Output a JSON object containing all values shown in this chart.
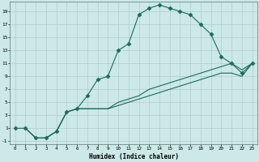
{
  "xlabel": "Humidex (Indice chaleur)",
  "ylabel": "",
  "bg_color": "#cce8e8",
  "grid_color": "#b8d8d8",
  "line_color": "#1a6b5a",
  "xlim": [
    -0.5,
    23.5
  ],
  "ylim": [
    -1.5,
    20.5
  ],
  "xticks": [
    0,
    1,
    2,
    3,
    4,
    5,
    6,
    7,
    8,
    9,
    10,
    11,
    12,
    13,
    14,
    15,
    16,
    17,
    18,
    19,
    20,
    21,
    22,
    23
  ],
  "yticks": [
    -1,
    1,
    3,
    5,
    7,
    9,
    11,
    13,
    15,
    17,
    19
  ],
  "curve1_x": [
    0,
    1,
    2,
    3,
    4,
    5,
    6,
    7,
    8,
    9,
    10,
    11,
    12,
    13,
    14,
    15,
    16,
    17,
    18,
    19,
    20,
    21,
    22,
    23
  ],
  "curve1_y": [
    1,
    1,
    -0.5,
    -0.5,
    0.5,
    3.5,
    4,
    6,
    8.5,
    9,
    13,
    14,
    18.5,
    19.5,
    20,
    19.5,
    19,
    18.5,
    17,
    15.5,
    12,
    11,
    9.5,
    11
  ],
  "curve2_x": [
    1,
    2,
    3,
    4,
    5,
    6,
    7,
    8,
    9,
    10,
    11,
    12,
    13,
    14,
    15,
    16,
    17,
    18,
    19,
    20,
    21,
    22,
    23
  ],
  "curve2_y": [
    1,
    -0.5,
    -0.5,
    0.5,
    3.5,
    4,
    4,
    4,
    4,
    5,
    5.5,
    6,
    7,
    7.5,
    8,
    8.5,
    9,
    9.5,
    10,
    10.5,
    11,
    10,
    11
  ],
  "curve3_x": [
    1,
    2,
    3,
    4,
    5,
    6,
    7,
    8,
    9,
    10,
    11,
    12,
    13,
    14,
    15,
    16,
    17,
    18,
    19,
    20,
    21,
    22,
    23
  ],
  "curve3_y": [
    1,
    -0.5,
    -0.5,
    0.5,
    3.5,
    4,
    4,
    4,
    4,
    4.5,
    5,
    5.5,
    6,
    6.5,
    7,
    7.5,
    8,
    8.5,
    9,
    9.5,
    9.5,
    9,
    11
  ]
}
